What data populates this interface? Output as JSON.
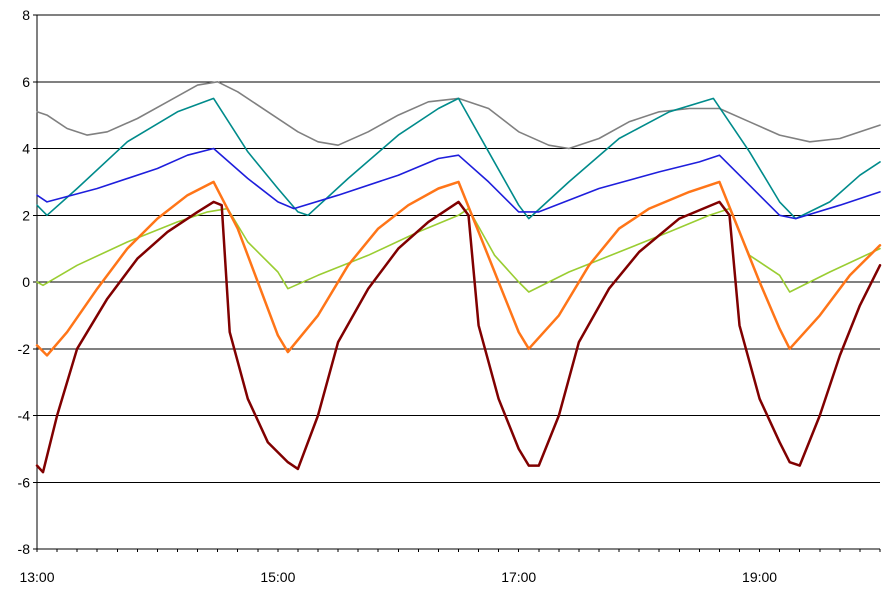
{
  "chart_data": {
    "type": "line",
    "title": "",
    "xlabel": "",
    "ylabel": "",
    "x_range": [
      "13:00",
      "20:00"
    ],
    "ylim": [
      -8,
      8
    ],
    "y_ticks": [
      {
        "value": 8,
        "label": "8"
      },
      {
        "value": 6,
        "label": "6"
      },
      {
        "value": 4,
        "label": "4"
      },
      {
        "value": 2,
        "label": "2"
      },
      {
        "value": 0,
        "label": "0"
      },
      {
        "value": -2,
        "label": "-2"
      },
      {
        "value": -4,
        "label": "-4"
      },
      {
        "value": -6,
        "label": "-6"
      },
      {
        "value": -8,
        "label": "-8"
      }
    ],
    "x_ticks": [
      {
        "value": "13:00",
        "label": "13:00"
      },
      {
        "value": "15:00",
        "label": "15:00"
      },
      {
        "value": "17:00",
        "label": "17:00"
      },
      {
        "value": "19:00",
        "label": "19:00"
      }
    ],
    "grid": "horizontal",
    "legend": "none",
    "series": [
      {
        "color": "#808080",
        "points": [
          [
            "13:00",
            5.1
          ],
          [
            "13:05",
            5.0
          ],
          [
            "13:15",
            4.6
          ],
          [
            "13:25",
            4.4
          ],
          [
            "13:35",
            4.5
          ],
          [
            "13:50",
            4.9
          ],
          [
            "14:05",
            5.4
          ],
          [
            "14:20",
            5.9
          ],
          [
            "14:30",
            6.0
          ],
          [
            "14:40",
            5.7
          ],
          [
            "14:55",
            5.1
          ],
          [
            "15:10",
            4.5
          ],
          [
            "15:20",
            4.2
          ],
          [
            "15:30",
            4.1
          ],
          [
            "15:45",
            4.5
          ],
          [
            "16:00",
            5.0
          ],
          [
            "16:15",
            5.4
          ],
          [
            "16:30",
            5.5
          ],
          [
            "16:45",
            5.2
          ],
          [
            "17:00",
            4.5
          ],
          [
            "17:15",
            4.1
          ],
          [
            "17:25",
            4.0
          ],
          [
            "17:40",
            4.3
          ],
          [
            "17:55",
            4.8
          ],
          [
            "18:10",
            5.1
          ],
          [
            "18:25",
            5.2
          ],
          [
            "18:40",
            5.2
          ],
          [
            "18:55",
            4.8
          ],
          [
            "19:10",
            4.4
          ],
          [
            "19:25",
            4.2
          ],
          [
            "19:40",
            4.3
          ],
          [
            "20:00",
            4.7
          ]
        ]
      },
      {
        "color": "#008B8B",
        "points": [
          [
            "13:00",
            2.3
          ],
          [
            "13:05",
            2.0
          ],
          [
            "13:20",
            2.8
          ],
          [
            "13:45",
            4.2
          ],
          [
            "14:10",
            5.1
          ],
          [
            "14:28",
            5.5
          ],
          [
            "14:45",
            3.9
          ],
          [
            "15:00",
            2.8
          ],
          [
            "15:10",
            2.1
          ],
          [
            "15:15",
            2.0
          ],
          [
            "15:35",
            3.1
          ],
          [
            "16:00",
            4.4
          ],
          [
            "16:20",
            5.2
          ],
          [
            "16:30",
            5.5
          ],
          [
            "16:45",
            3.9
          ],
          [
            "17:00",
            2.3
          ],
          [
            "17:05",
            1.9
          ],
          [
            "17:25",
            3.0
          ],
          [
            "17:50",
            4.3
          ],
          [
            "18:15",
            5.1
          ],
          [
            "18:37",
            5.5
          ],
          [
            "18:55",
            3.9
          ],
          [
            "19:10",
            2.4
          ],
          [
            "19:18",
            1.9
          ],
          [
            "19:35",
            2.4
          ],
          [
            "19:50",
            3.2
          ],
          [
            "20:00",
            3.6
          ]
        ]
      },
      {
        "color": "#1E1EDC",
        "points": [
          [
            "13:00",
            2.6
          ],
          [
            "13:05",
            2.4
          ],
          [
            "13:30",
            2.8
          ],
          [
            "14:00",
            3.4
          ],
          [
            "14:15",
            3.8
          ],
          [
            "14:28",
            4.0
          ],
          [
            "14:45",
            3.1
          ],
          [
            "15:00",
            2.4
          ],
          [
            "15:08",
            2.2
          ],
          [
            "15:30",
            2.6
          ],
          [
            "16:00",
            3.2
          ],
          [
            "16:20",
            3.7
          ],
          [
            "16:30",
            3.8
          ],
          [
            "16:45",
            3.0
          ],
          [
            "17:00",
            2.1
          ],
          [
            "17:10",
            2.1
          ],
          [
            "17:40",
            2.8
          ],
          [
            "18:10",
            3.3
          ],
          [
            "18:30",
            3.6
          ],
          [
            "18:40",
            3.8
          ],
          [
            "18:55",
            2.9
          ],
          [
            "19:10",
            2.0
          ],
          [
            "19:18",
            1.9
          ],
          [
            "19:40",
            2.3
          ],
          [
            "20:00",
            2.7
          ]
        ]
      },
      {
        "color": "#9ACD32",
        "points": [
          [
            "13:00",
            0.0
          ],
          [
            "13:03",
            -0.1
          ],
          [
            "13:20",
            0.5
          ],
          [
            "13:45",
            1.2
          ],
          [
            "14:10",
            1.8
          ],
          [
            "14:25",
            2.1
          ],
          [
            "14:35",
            2.2
          ],
          [
            "14:45",
            1.2
          ],
          [
            "15:00",
            0.3
          ],
          [
            "15:05",
            -0.2
          ],
          [
            "15:20",
            0.2
          ],
          [
            "15:45",
            0.8
          ],
          [
            "16:10",
            1.5
          ],
          [
            "16:30",
            2.0
          ],
          [
            "16:35",
            2.2
          ],
          [
            "16:48",
            0.8
          ],
          [
            "17:00",
            0.0
          ],
          [
            "17:05",
            -0.3
          ],
          [
            "17:25",
            0.3
          ],
          [
            "17:50",
            0.9
          ],
          [
            "18:15",
            1.5
          ],
          [
            "18:35",
            2.0
          ],
          [
            "18:45",
            2.2
          ],
          [
            "18:55",
            0.8
          ],
          [
            "19:10",
            0.2
          ],
          [
            "19:15",
            -0.3
          ],
          [
            "19:35",
            0.3
          ],
          [
            "20:00",
            1.0
          ]
        ]
      },
      {
        "color": "#FF7518",
        "points": [
          [
            "13:00",
            -1.9
          ],
          [
            "13:05",
            -2.2
          ],
          [
            "13:15",
            -1.5
          ],
          [
            "13:30",
            -0.2
          ],
          [
            "13:45",
            1.0
          ],
          [
            "14:00",
            1.9
          ],
          [
            "14:15",
            2.6
          ],
          [
            "14:28",
            3.0
          ],
          [
            "14:40",
            1.6
          ],
          [
            "14:50",
            0.0
          ],
          [
            "15:00",
            -1.6
          ],
          [
            "15:05",
            -2.1
          ],
          [
            "15:20",
            -1.0
          ],
          [
            "15:35",
            0.5
          ],
          [
            "15:50",
            1.6
          ],
          [
            "16:05",
            2.3
          ],
          [
            "16:20",
            2.8
          ],
          [
            "16:30",
            3.0
          ],
          [
            "16:40",
            1.5
          ],
          [
            "16:50",
            0.0
          ],
          [
            "17:00",
            -1.5
          ],
          [
            "17:05",
            -2.0
          ],
          [
            "17:20",
            -1.0
          ],
          [
            "17:35",
            0.5
          ],
          [
            "17:50",
            1.6
          ],
          [
            "18:05",
            2.2
          ],
          [
            "18:25",
            2.7
          ],
          [
            "18:40",
            3.0
          ],
          [
            "18:50",
            1.5
          ],
          [
            "19:00",
            0.0
          ],
          [
            "19:10",
            -1.4
          ],
          [
            "19:15",
            -2.0
          ],
          [
            "19:30",
            -1.0
          ],
          [
            "19:45",
            0.2
          ],
          [
            "20:00",
            1.1
          ]
        ]
      },
      {
        "color": "#800000",
        "points": [
          [
            "13:00",
            -5.5
          ],
          [
            "13:03",
            -5.7
          ],
          [
            "13:10",
            -4.0
          ],
          [
            "13:20",
            -2.0
          ],
          [
            "13:35",
            -0.5
          ],
          [
            "13:50",
            0.7
          ],
          [
            "14:05",
            1.5
          ],
          [
            "14:20",
            2.1
          ],
          [
            "14:28",
            2.4
          ],
          [
            "14:32",
            2.3
          ],
          [
            "14:36",
            -1.5
          ],
          [
            "14:45",
            -3.5
          ],
          [
            "14:55",
            -4.8
          ],
          [
            "15:05",
            -5.4
          ],
          [
            "15:10",
            -5.6
          ],
          [
            "15:20",
            -4.0
          ],
          [
            "15:30",
            -1.8
          ],
          [
            "15:45",
            -0.2
          ],
          [
            "16:00",
            1.0
          ],
          [
            "16:15",
            1.8
          ],
          [
            "16:30",
            2.4
          ],
          [
            "16:35",
            2.0
          ],
          [
            "16:40",
            -1.3
          ],
          [
            "16:50",
            -3.5
          ],
          [
            "17:00",
            -5.0
          ],
          [
            "17:05",
            -5.5
          ],
          [
            "17:10",
            -5.5
          ],
          [
            "17:20",
            -4.0
          ],
          [
            "17:30",
            -1.8
          ],
          [
            "17:45",
            -0.2
          ],
          [
            "18:00",
            0.9
          ],
          [
            "18:20",
            1.9
          ],
          [
            "18:40",
            2.4
          ],
          [
            "18:45",
            2.0
          ],
          [
            "18:50",
            -1.3
          ],
          [
            "19:00",
            -3.5
          ],
          [
            "19:10",
            -4.8
          ],
          [
            "19:15",
            -5.4
          ],
          [
            "19:20",
            -5.5
          ],
          [
            "19:30",
            -4.0
          ],
          [
            "19:40",
            -2.2
          ],
          [
            "19:50",
            -0.7
          ],
          [
            "20:00",
            0.5
          ]
        ]
      }
    ]
  }
}
